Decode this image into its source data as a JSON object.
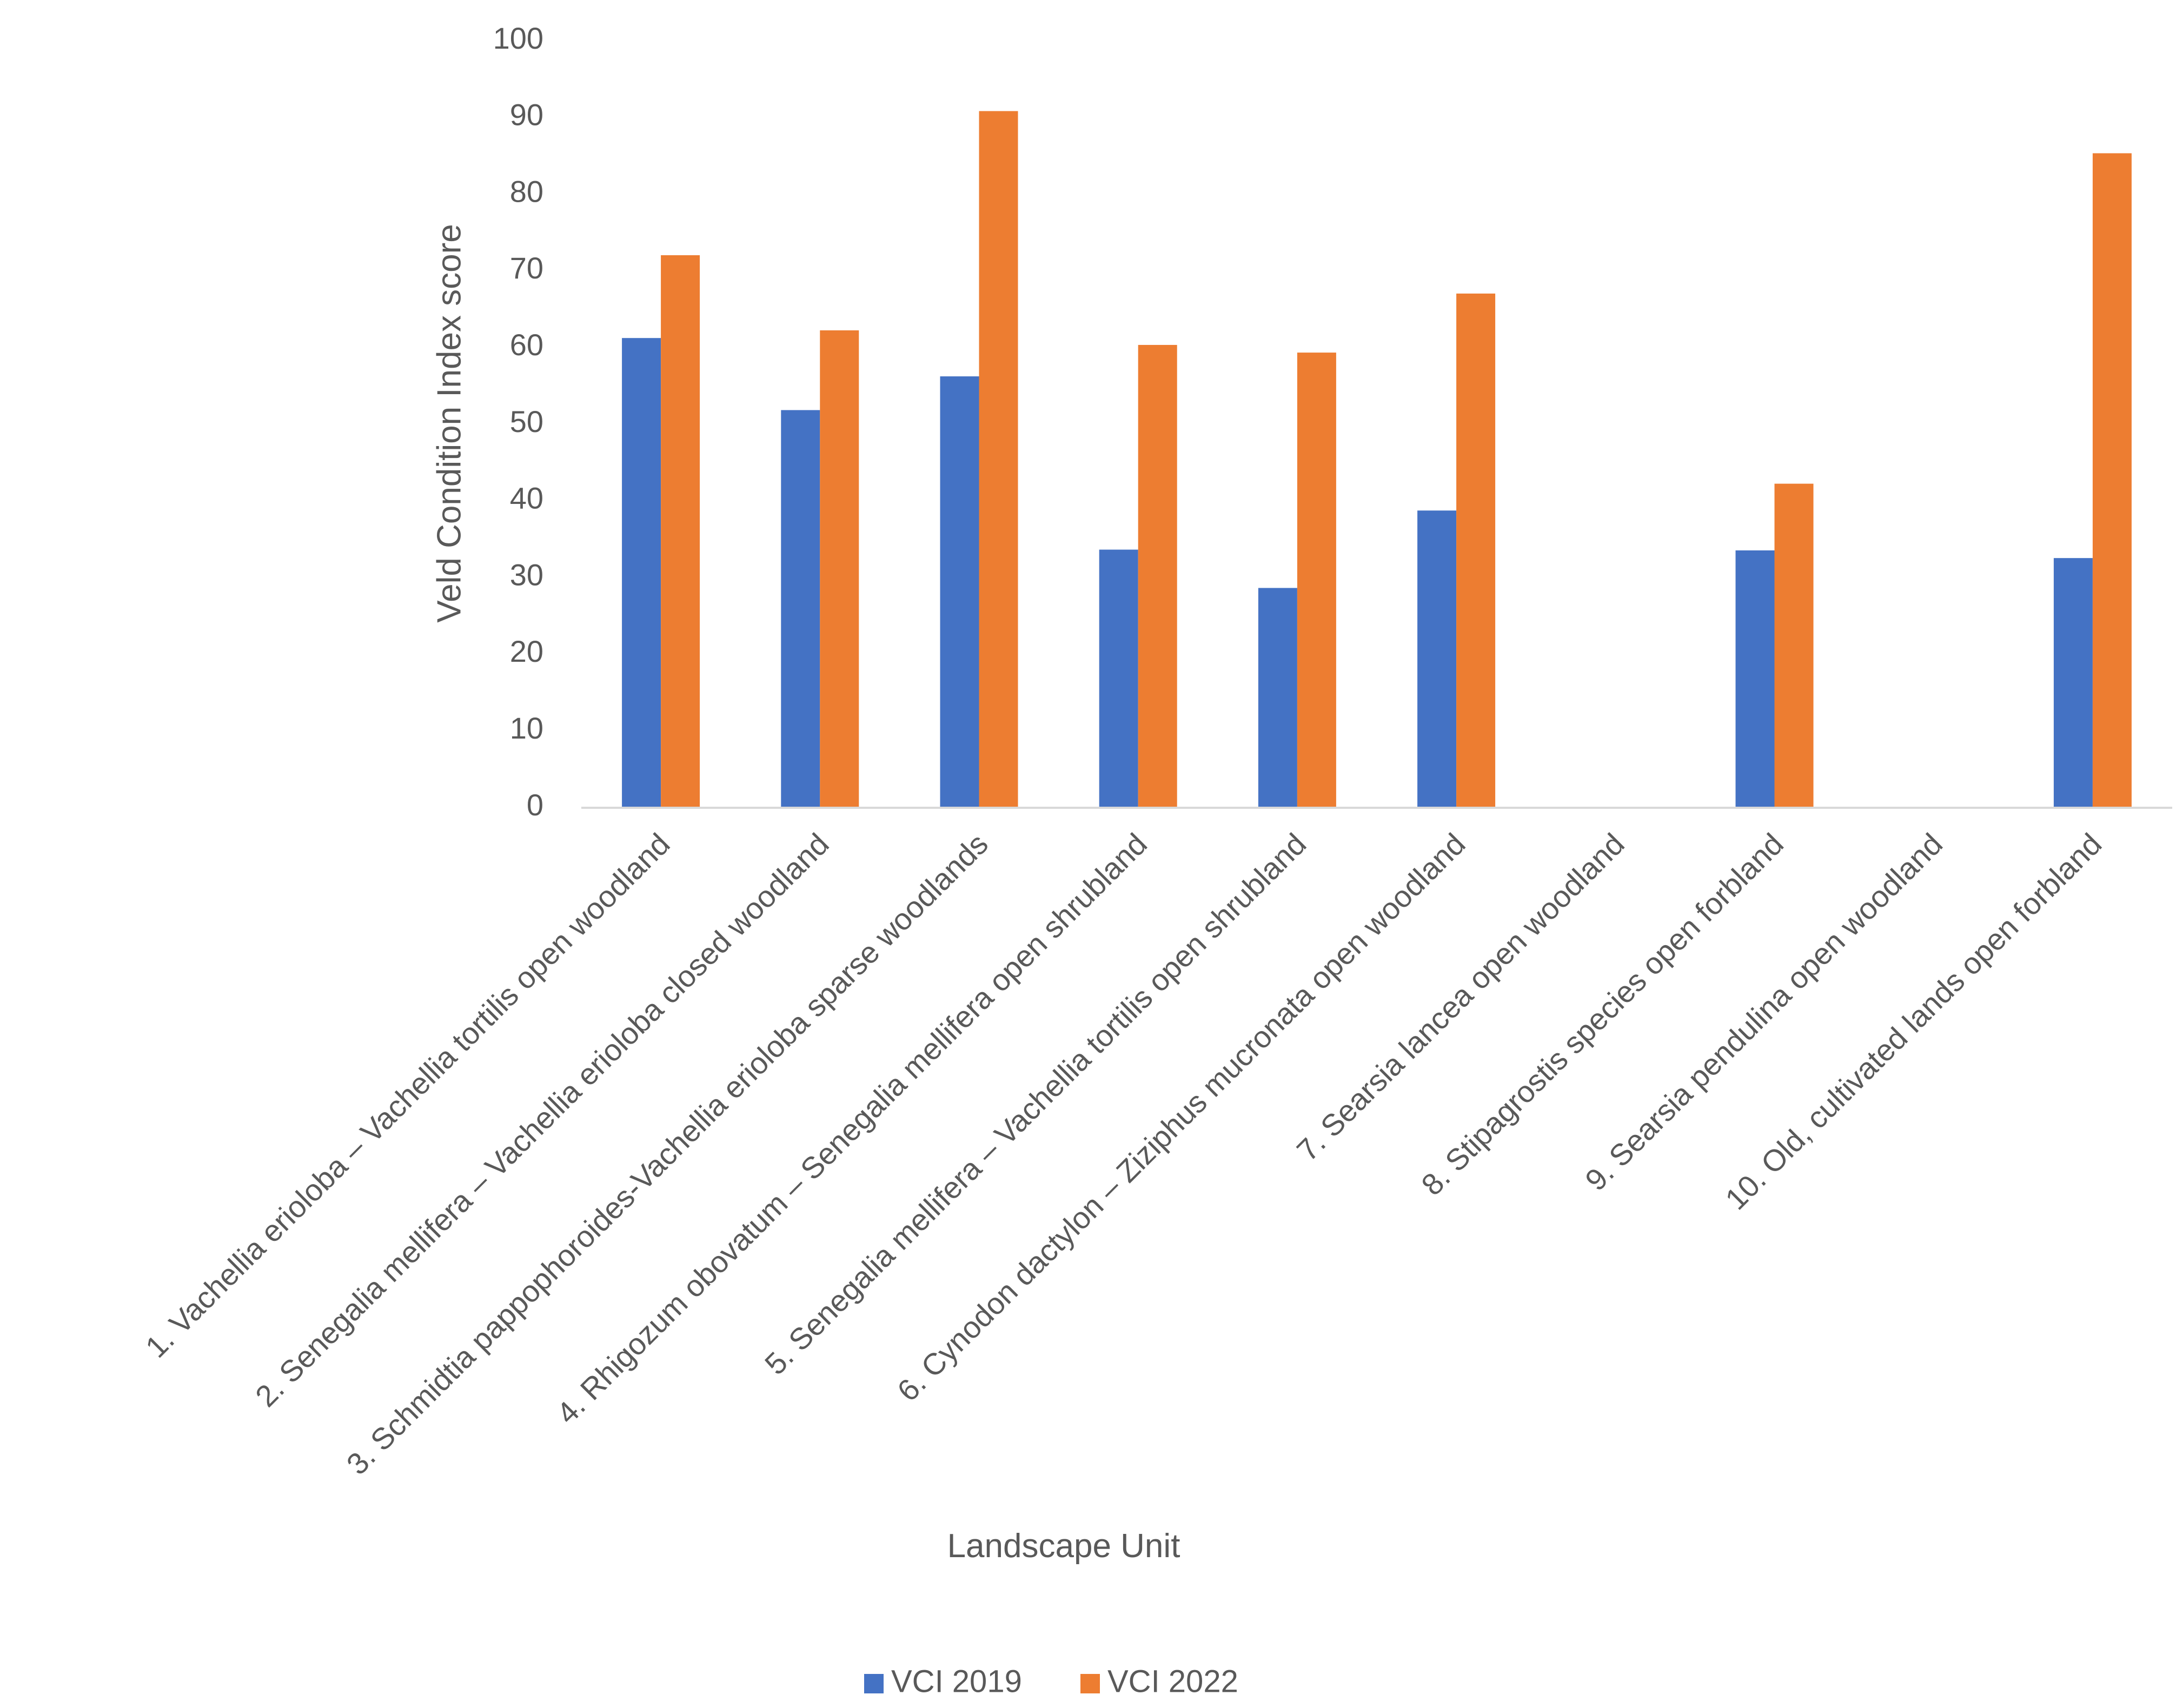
{
  "chart_data": {
    "type": "bar",
    "title": "",
    "xlabel": "Landscape Unit",
    "ylabel": "Veld Condition Index score",
    "ylim": [
      0,
      100
    ],
    "yticks": [
      0,
      10,
      20,
      30,
      40,
      50,
      60,
      70,
      80,
      90,
      100
    ],
    "grid": false,
    "legend_position": "bottom",
    "categories": [
      "1. Vachellia erioloba – Vachellia tortilis open woodland",
      "2. Senegalia mellifera – Vachellia erioloba closed woodland",
      "3. Schmidtia pappophoroides-Vachellia erioloba sparse woodlands",
      "4. Rhigozum obovatum – Senegalia mellifera open shrubland",
      "5. Senegalia mellifera – Vachellia tortilis open shrubland",
      "6. Cynodon dactylon – Ziziphus mucronata  open woodland",
      "7. Searsia lancea open woodland",
      "8. Stipagrostis species open forbland",
      "9. Searsia pendulina open woodland",
      "10. Old, cultivated lands open forbland"
    ],
    "series": [
      {
        "name": "VCI 2019",
        "color": "#4472C4",
        "values": [
          61.2,
          51.8,
          56.2,
          33.6,
          28.6,
          38.7,
          0,
          33.5,
          0,
          32.5
        ]
      },
      {
        "name": "VCI 2022",
        "color": "#ED7D31",
        "values": [
          72.0,
          62.2,
          90.8,
          60.3,
          59.3,
          67.0,
          0,
          42.2,
          0,
          85.3
        ]
      }
    ]
  }
}
